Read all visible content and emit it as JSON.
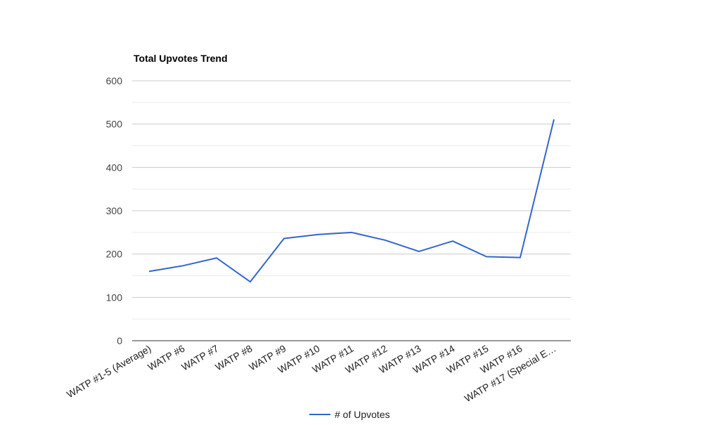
{
  "chart_data": {
    "type": "line",
    "title": "Total Upvotes Trend",
    "xlabel": "",
    "ylabel": "",
    "categories": [
      "WATP #1-5 (Average)",
      "WATP #6",
      "WATP #7",
      "WATP #8",
      "WATP #9",
      "WATP #10",
      "WATP #11",
      "WATP #12",
      "WATP #13",
      "WATP #14",
      "WATP #15",
      "WATP #16",
      "WATP #17 (Special E…"
    ],
    "series": [
      {
        "name": "# of Upvotes",
        "color": "#3366cc",
        "values": [
          160,
          173,
          191,
          136,
          236,
          245,
          250,
          232,
          206,
          230,
          194,
          192,
          511
        ]
      }
    ],
    "ylim": [
      0,
      600
    ],
    "yticks": [
      0,
      100,
      200,
      300,
      400,
      500,
      600
    ],
    "grid": true,
    "legend_position": "bottom"
  }
}
